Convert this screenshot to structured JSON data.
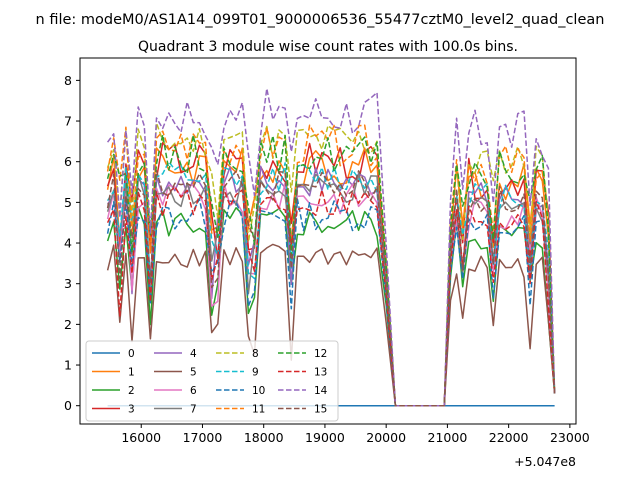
{
  "chart_data": {
    "type": "line",
    "suptitle": "n file: modeM0/AS1A14_099T01_9000006536_55477cztM0_level2_quad_clean",
    "title": "Quadrant 3 module wise count rates with 100.0s bins.",
    "xlabel": "",
    "ylabel": "",
    "x_offset_label": "+5.047e8",
    "xlim": [
      15000,
      23100
    ],
    "ylim": [
      -0.45,
      8.55
    ],
    "x_ticks": [
      16000,
      17000,
      18000,
      19000,
      20000,
      21000,
      22000,
      23000
    ],
    "y_ticks": [
      0,
      1,
      2,
      3,
      4,
      5,
      6,
      7,
      8
    ],
    "x_tick_labels": [
      "16000",
      "17000",
      "18000",
      "19000",
      "20000",
      "21000",
      "22000",
      "23000"
    ],
    "y_tick_labels": [
      "0",
      "1",
      "2",
      "3",
      "4",
      "5",
      "6",
      "7",
      "8"
    ],
    "legend_location": "lower-left",
    "x_segments": [
      [
        15450,
        19850
      ],
      [
        20150,
        20950
      ],
      [
        21050,
        22750
      ]
    ],
    "series": [
      {
        "name": "0",
        "color": "#1f77b4",
        "style": "solid",
        "constant": 0
      },
      {
        "name": "1",
        "color": "#ff7f0e",
        "style": "solid",
        "level": 5.9,
        "amp": 0.5
      },
      {
        "name": "2",
        "color": "#2ca02c",
        "style": "solid",
        "level": 4.5,
        "amp": 0.4
      },
      {
        "name": "3",
        "color": "#d62728",
        "style": "solid",
        "level": 6.0,
        "amp": 0.5
      },
      {
        "name": "4",
        "color": "#9467bd",
        "style": "solid",
        "level": 5.5,
        "amp": 0.4
      },
      {
        "name": "5",
        "color": "#8c564b",
        "style": "solid",
        "level": 3.7,
        "amp": 0.3
      },
      {
        "name": "6",
        "color": "#e377c2",
        "style": "solid",
        "level": 5.1,
        "amp": 0.4
      },
      {
        "name": "7",
        "color": "#7f7f7f",
        "style": "solid",
        "level": 5.3,
        "amp": 0.4
      },
      {
        "name": "8",
        "color": "#bcbd22",
        "style": "dashed",
        "level": 6.5,
        "amp": 0.5
      },
      {
        "name": "9",
        "color": "#17becf",
        "style": "dashed",
        "level": 5.6,
        "amp": 0.4
      },
      {
        "name": "10",
        "color": "#1f77b4",
        "style": "dashed",
        "level": 4.7,
        "amp": 0.4
      },
      {
        "name": "11",
        "color": "#ff7f0e",
        "style": "dashed",
        "level": 6.4,
        "amp": 0.5
      },
      {
        "name": "12",
        "color": "#2ca02c",
        "style": "dashed",
        "level": 6.2,
        "amp": 0.5
      },
      {
        "name": "13",
        "color": "#d62728",
        "style": "dashed",
        "level": 5.0,
        "amp": 0.4
      },
      {
        "name": "14",
        "color": "#9467bd",
        "style": "dashed",
        "level": 7.2,
        "amp": 0.6
      },
      {
        "name": "15",
        "color": "#8c564b",
        "style": "dashed",
        "level": 5.4,
        "amp": 0.4
      }
    ]
  }
}
